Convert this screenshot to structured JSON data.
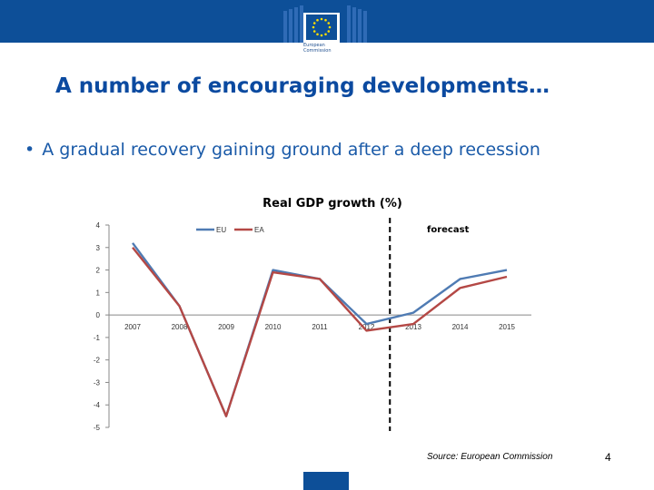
{
  "header": {
    "logo_lines": [
      "European",
      "Commission"
    ],
    "band_color": "#0d4f98"
  },
  "slide": {
    "title": "A number of encouraging developments…",
    "bullet": "A gradual recovery gaining ground after a deep recession",
    "source": "Source: European Commission",
    "page_number": "4"
  },
  "chart_data": {
    "type": "line",
    "title": "Real GDP growth (%)",
    "x": [
      "2007",
      "2008",
      "2009",
      "2010",
      "2011",
      "2012",
      "2013",
      "2014",
      "2015"
    ],
    "yticks": [
      "4",
      "3",
      "2",
      "1",
      "0",
      "-1",
      "-2",
      "-3",
      "-4",
      "-5"
    ],
    "ylim": [
      -5,
      4
    ],
    "series": [
      {
        "name": "EU",
        "color": "#4f7bb3",
        "values": [
          3.2,
          0.4,
          -4.5,
          2.0,
          1.6,
          -0.4,
          0.1,
          1.6,
          2.0
        ]
      },
      {
        "name": "EA",
        "color": "#b44845",
        "values": [
          3.0,
          0.4,
          -4.5,
          1.9,
          1.6,
          -0.7,
          -0.4,
          1.2,
          1.7
        ]
      }
    ],
    "legend_position": "top",
    "annotation": "forecast",
    "forecast_divider_between": [
      "2012",
      "2013"
    ],
    "grid": false
  }
}
